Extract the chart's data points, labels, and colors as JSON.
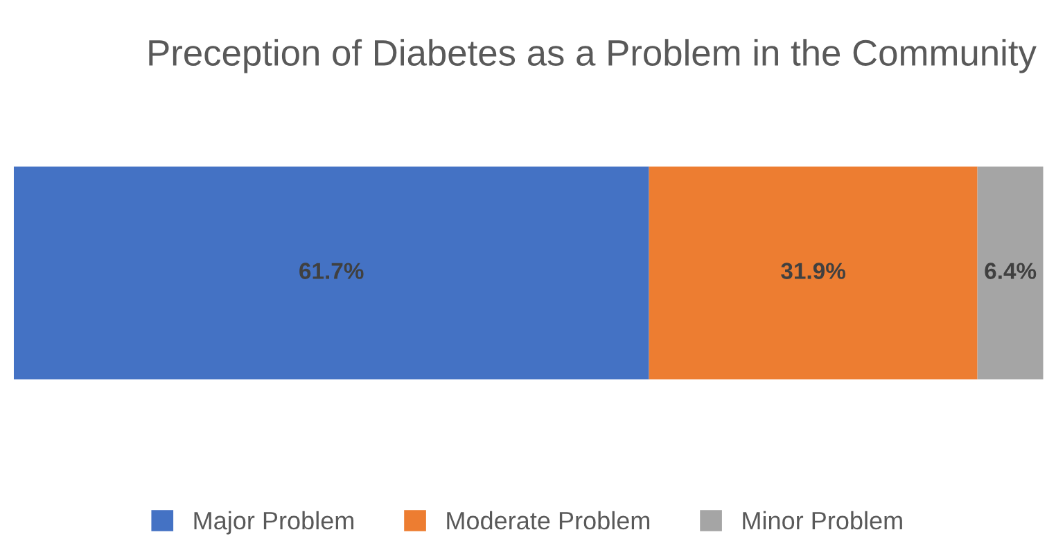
{
  "chart_data": {
    "type": "bar",
    "orientation": "horizontal",
    "stacked": true,
    "title": "Preception of Diabetes as a Problem in the Community",
    "categories": [
      null
    ],
    "series": [
      {
        "name": "Major Problem",
        "color": "#4472c4",
        "values": [
          61.7
        ],
        "value_labels": [
          "61.7%"
        ]
      },
      {
        "name": "Moderate Problem",
        "color": "#ed7d31",
        "values": [
          31.9
        ],
        "value_labels": [
          "31.9%"
        ]
      },
      {
        "name": "Minor Problem",
        "color": "#a5a5a5",
        "values": [
          6.4
        ],
        "value_labels": [
          "6.4%"
        ]
      }
    ],
    "legend": "bottom",
    "grid": false,
    "tick_labels": false
  }
}
